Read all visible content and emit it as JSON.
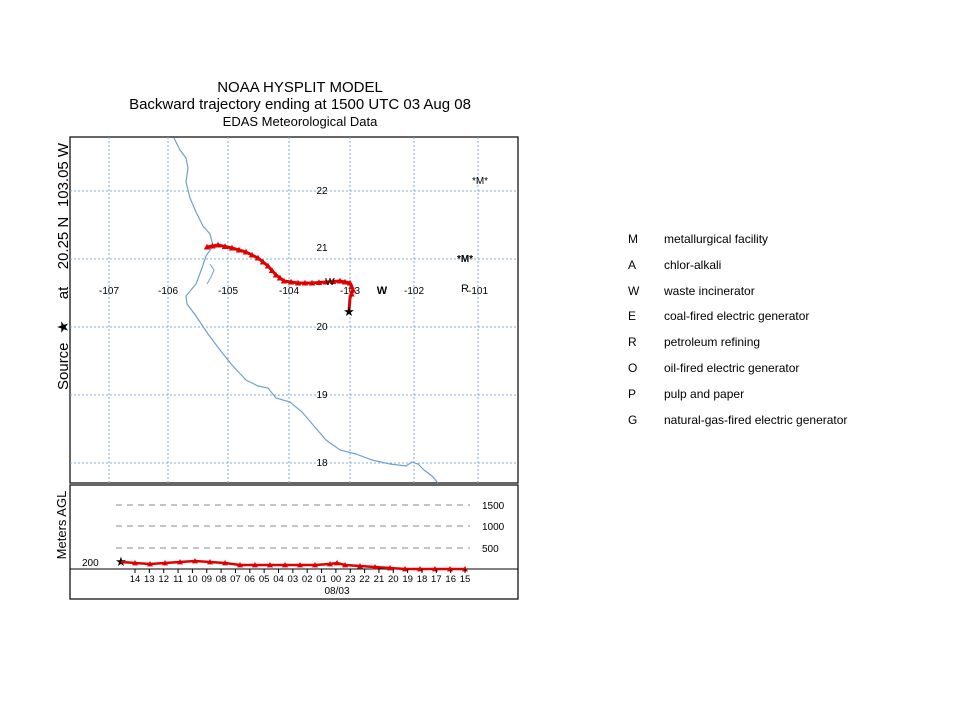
{
  "title": {
    "line1": "NOAA HYSPLIT MODEL",
    "line2": "Backward trajectory ending at 1500 UTC 03 Aug 08",
    "line3": "EDAS Meteorological Data"
  },
  "source_label": {
    "prefix": "Source",
    "at": "at",
    "lat": "20.25 N",
    "lon": "103.05 W"
  },
  "map": {
    "lon_labels": [
      "-107",
      "-106",
      "-105",
      "-104",
      "-103",
      "-102",
      "-101"
    ],
    "lat_labels": [
      "22",
      "21",
      "20",
      "19",
      "18"
    ],
    "markers": {
      "m_top": "*M*",
      "m_mid": "*M*",
      "w1": "W",
      "w2": "W",
      "r": "R"
    }
  },
  "profile": {
    "ylabel": "Meters AGL",
    "start_height_label": "200",
    "height_labels": [
      "1500",
      "1000",
      "500"
    ],
    "time_labels": [
      "14",
      "13",
      "12",
      "11",
      "10",
      "09",
      "08",
      "07",
      "06",
      "05",
      "04",
      "03",
      "02",
      "01",
      "00",
      "23",
      "22",
      "21",
      "20",
      "19",
      "18",
      "17",
      "16",
      "15"
    ],
    "date_label": "08/03"
  },
  "legend": [
    {
      "code": "M",
      "desc": "metallurgical facility"
    },
    {
      "code": "A",
      "desc": "chlor-alkali"
    },
    {
      "code": "W",
      "desc": "waste incinerator"
    },
    {
      "code": "E",
      "desc": "coal-fired electric generator"
    },
    {
      "code": "R",
      "desc": "petroleum refining"
    },
    {
      "code": "O",
      "desc": "oil-fired electric generator"
    },
    {
      "code": "P",
      "desc": "pulp and paper"
    },
    {
      "code": "G",
      "desc": "natural-gas-fired electric generator"
    }
  ],
  "colors": {
    "trajectory": "#e00000",
    "coast": "#6fa0d0",
    "grid": "#7faed6",
    "frame": "#000000"
  }
}
